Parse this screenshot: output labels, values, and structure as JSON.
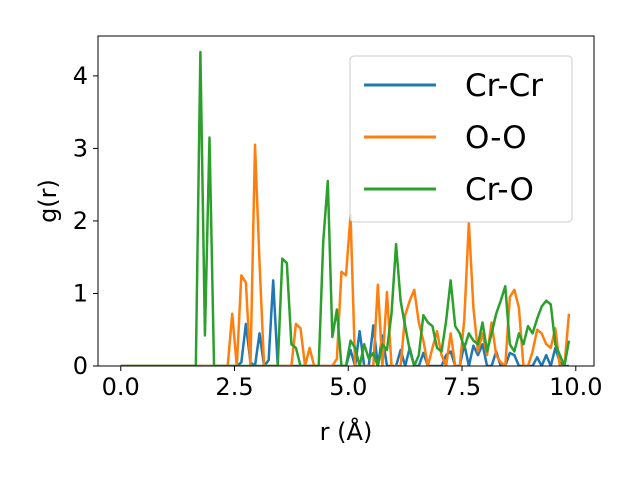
{
  "chart_data": {
    "type": "line",
    "title": "",
    "xlabel": "r (Å)",
    "ylabel": "g(r)",
    "xlim": [
      -0.5,
      10.4
    ],
    "ylim": [
      0,
      4.55
    ],
    "xticks": [
      0.0,
      2.5,
      5.0,
      7.5,
      10.0
    ],
    "xtick_labels": [
      "0.0",
      "2.5",
      "5.0",
      "7.5",
      "10.0"
    ],
    "yticks": [
      0,
      1,
      2,
      3,
      4
    ],
    "ytick_labels": [
      "0",
      "1",
      "2",
      "3",
      "4"
    ],
    "grid": false,
    "legend_position": "top-right",
    "series": [
      {
        "name": "Cr-Cr",
        "color": "#1f77b4",
        "x": [
          0.0,
          2.55,
          2.65,
          2.75,
          2.85,
          2.95,
          3.05,
          3.15,
          3.25,
          3.35,
          3.45,
          4.95,
          5.05,
          5.15,
          5.25,
          5.35,
          5.45,
          5.55,
          5.65,
          5.75,
          5.85,
          5.95,
          6.05,
          6.15,
          6.25,
          6.35,
          6.45,
          6.55,
          6.65,
          6.75,
          6.85,
          6.95,
          7.05,
          7.15,
          7.25,
          7.35,
          7.45,
          7.55,
          7.65,
          7.75,
          7.85,
          7.95,
          8.05,
          8.15,
          8.25,
          8.35,
          8.45,
          8.55,
          8.65,
          8.75,
          8.85,
          8.95,
          9.05,
          9.15,
          9.25,
          9.35,
          9.45,
          9.55,
          9.65,
          9.75,
          9.85
        ],
        "y": [
          0.0,
          0.0,
          0.05,
          0.58,
          0.05,
          0.0,
          0.45,
          0.0,
          0.08,
          1.18,
          0.0,
          0.0,
          0.22,
          0.0,
          0.48,
          0.0,
          0.0,
          0.56,
          0.0,
          0.42,
          0.0,
          0.0,
          0.0,
          0.22,
          0.0,
          0.25,
          0.0,
          0.0,
          0.18,
          0.0,
          0.0,
          0.0,
          0.0,
          0.15,
          0.2,
          0.0,
          0.0,
          0.3,
          0.0,
          0.28,
          0.15,
          0.3,
          0.0,
          0.0,
          0.2,
          0.0,
          0.0,
          0.18,
          0.15,
          0.0,
          0.0,
          0.0,
          0.0,
          0.12,
          0.0,
          0.15,
          0.0,
          0.25,
          0.05,
          0.0,
          0.0
        ]
      },
      {
        "name": "O-O",
        "color": "#ff7f0e",
        "x": [
          0.0,
          2.25,
          2.35,
          2.45,
          2.55,
          2.65,
          2.75,
          2.85,
          2.95,
          3.05,
          3.15,
          3.25,
          3.35,
          3.45,
          3.55,
          3.65,
          3.75,
          3.85,
          3.95,
          4.05,
          4.15,
          4.25,
          4.35,
          4.45,
          4.55,
          4.65,
          4.75,
          4.85,
          4.95,
          5.05,
          5.15,
          5.25,
          5.35,
          5.45,
          5.55,
          5.65,
          5.75,
          5.85,
          5.95,
          6.05,
          6.15,
          6.25,
          6.35,
          6.45,
          6.55,
          6.65,
          6.75,
          6.85,
          6.95,
          7.05,
          7.15,
          7.25,
          7.35,
          7.45,
          7.55,
          7.65,
          7.75,
          7.85,
          7.95,
          8.05,
          8.15,
          8.25,
          8.35,
          8.45,
          8.55,
          8.65,
          8.75,
          8.85,
          8.95,
          9.05,
          9.15,
          9.25,
          9.35,
          9.45,
          9.55,
          9.65,
          9.75,
          9.85
        ],
        "y": [
          0.0,
          0.0,
          0.0,
          0.72,
          0.0,
          1.25,
          1.15,
          0.0,
          3.05,
          1.42,
          0.0,
          0.0,
          0.0,
          0.0,
          0.0,
          0.0,
          0.0,
          0.58,
          0.52,
          0.0,
          0.25,
          0.0,
          0.0,
          0.0,
          0.0,
          0.0,
          0.1,
          1.3,
          1.25,
          2.08,
          0.0,
          0.0,
          0.0,
          0.0,
          0.0,
          1.12,
          0.0,
          1.02,
          0.0,
          0.0,
          0.0,
          0.7,
          0.9,
          1.05,
          0.6,
          0.35,
          0.0,
          0.25,
          0.48,
          0.15,
          0.0,
          0.45,
          0.0,
          0.0,
          0.65,
          1.98,
          0.8,
          0.2,
          0.45,
          0.15,
          0.6,
          0.15,
          0.05,
          0.0,
          0.95,
          1.05,
          0.8,
          0.0,
          0.0,
          0.2,
          0.5,
          0.45,
          0.3,
          0.25,
          0.52,
          0.0,
          0.0,
          0.72
        ]
      },
      {
        "name": "Cr-O",
        "color": "#2ca02c",
        "x": [
          0.0,
          1.65,
          1.75,
          1.85,
          1.95,
          2.05,
          2.15,
          3.25,
          3.35,
          3.45,
          3.55,
          3.65,
          3.75,
          3.85,
          3.95,
          4.05,
          4.15,
          4.25,
          4.35,
          4.45,
          4.55,
          4.65,
          4.75,
          4.85,
          4.95,
          5.05,
          5.15,
          5.25,
          5.35,
          5.45,
          5.55,
          5.65,
          5.75,
          5.85,
          5.95,
          6.05,
          6.15,
          6.25,
          6.35,
          6.45,
          6.55,
          6.65,
          6.75,
          6.85,
          6.95,
          7.05,
          7.15,
          7.25,
          7.35,
          7.45,
          7.55,
          7.65,
          7.75,
          7.85,
          7.95,
          8.05,
          8.15,
          8.25,
          8.35,
          8.45,
          8.55,
          8.65,
          8.75,
          8.85,
          8.95,
          9.05,
          9.15,
          9.25,
          9.35,
          9.45,
          9.55,
          9.65,
          9.75,
          9.85
        ],
        "y": [
          0.0,
          0.0,
          4.33,
          0.42,
          3.15,
          0.0,
          0.0,
          0.0,
          0.0,
          0.0,
          1.48,
          1.42,
          0.3,
          0.25,
          0.0,
          0.0,
          0.0,
          0.0,
          0.0,
          1.72,
          2.55,
          0.4,
          0.78,
          0.0,
          0.0,
          0.35,
          0.25,
          0.0,
          0.3,
          0.1,
          0.18,
          0.0,
          0.3,
          0.22,
          0.72,
          1.68,
          0.9,
          0.55,
          0.22,
          0.0,
          0.15,
          0.7,
          0.6,
          0.55,
          0.25,
          0.2,
          0.62,
          1.18,
          0.55,
          0.45,
          0.25,
          0.45,
          0.35,
          0.3,
          0.6,
          0.2,
          0.45,
          0.72,
          0.9,
          1.1,
          0.3,
          0.2,
          0.45,
          0.3,
          0.55,
          0.45,
          0.65,
          0.82,
          0.9,
          0.85,
          0.3,
          0.15,
          0.0,
          0.35
        ]
      }
    ]
  }
}
